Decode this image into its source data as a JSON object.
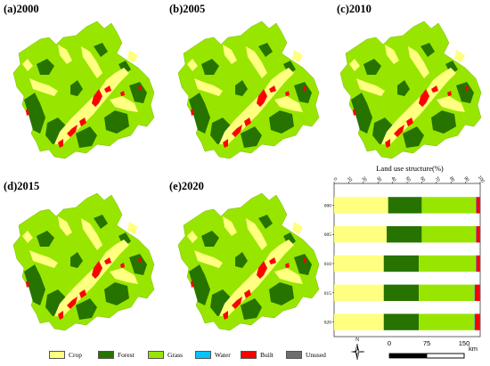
{
  "panels": [
    {
      "label": "(a)2000"
    },
    {
      "label": "(b)2005"
    },
    {
      "label": "(c)2010"
    },
    {
      "label": "(d)2015"
    },
    {
      "label": "(e)2020"
    }
  ],
  "legend": [
    {
      "label": "Crop",
      "color": "#ffff80"
    },
    {
      "label": "Forest",
      "color": "#267300"
    },
    {
      "label": "Grass",
      "color": "#98e600"
    },
    {
      "label": "Water",
      "color": "#00c5ff"
    },
    {
      "label": "Built",
      "color": "#ff0000"
    },
    {
      "label": "Unused",
      "color": "#6e6e6e"
    }
  ],
  "compass": {
    "label": "N"
  },
  "scale_bar": {
    "ticks": [
      "0",
      "75",
      "150"
    ],
    "unit": "km"
  },
  "chart_data": {
    "type": "bar",
    "orientation": "horizontal",
    "stacked": true,
    "title": "Land use structure(%)",
    "categories": [
      "2000",
      "2005",
      "2010",
      "2015",
      "2020"
    ],
    "xlim": [
      0,
      100
    ],
    "x_ticks": [
      "0",
      "10",
      "20",
      "30",
      "40",
      "50",
      "60",
      "70",
      "80",
      "90",
      "100"
    ],
    "series": [
      {
        "name": "Crop",
        "color": "#ffff80",
        "values": [
          37,
          36,
          34,
          34,
          34
        ]
      },
      {
        "name": "Forest",
        "color": "#267300",
        "values": [
          23,
          24,
          24,
          24,
          24
        ]
      },
      {
        "name": "Grass",
        "color": "#98e600",
        "values": [
          37,
          37,
          39,
          38,
          38
        ]
      },
      {
        "name": "Water",
        "color": "#00c5ff",
        "values": [
          0.3,
          0.3,
          0.3,
          0.3,
          0.3
        ]
      },
      {
        "name": "Built",
        "color": "#ff0000",
        "values": [
          2.5,
          2.5,
          2.5,
          3.5,
          3.5
        ]
      },
      {
        "name": "Unused",
        "color": "#6e6e6e",
        "values": [
          0.2,
          0.2,
          0.2,
          0.2,
          0.2
        ]
      }
    ]
  }
}
